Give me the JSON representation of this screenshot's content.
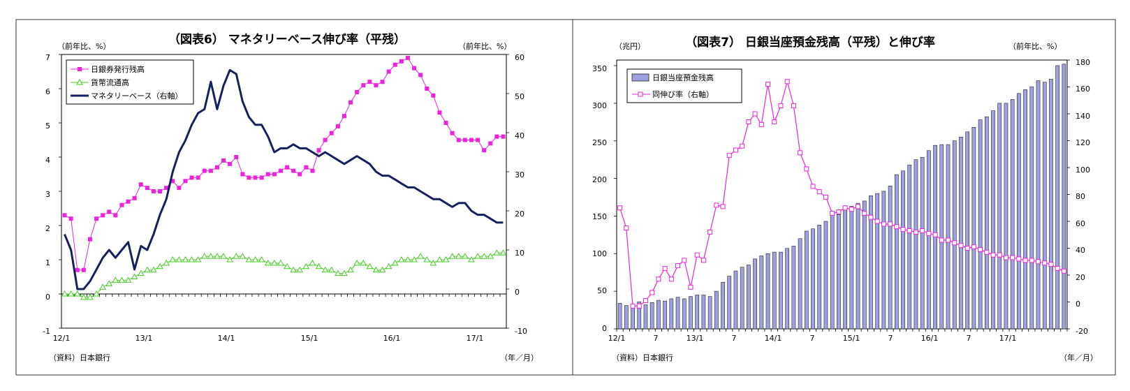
{
  "chart_data": [
    {
      "type": "line",
      "title": "（図表6） マネタリーベース伸び率（平残）",
      "left_unit": "（前年比、%）",
      "right_unit": "（前年比、%）",
      "x_unit": "（年／月）",
      "source": "（資料）日本銀行",
      "left_ticks": [
        "7",
        "6",
        "5",
        "4",
        "3",
        "2",
        "1",
        "0",
        "-1"
      ],
      "right_ticks": [
        "60",
        "50",
        "40",
        "30",
        "20",
        "10",
        "0",
        "-10"
      ],
      "x_ticks": [
        "12/1",
        "13/1",
        "14/1",
        "15/1",
        "16/1",
        "17/1"
      ],
      "ylim_left": [
        -1,
        7
      ],
      "ylim_right": [
        -10,
        60
      ],
      "grid": false,
      "legend_position": "top-left",
      "x_start": "2012-01",
      "series": [
        {
          "name": "日銀券発行残高",
          "axis": "left",
          "color": "#ee22dd",
          "marker": "square",
          "values": [
            2.3,
            2.2,
            0.7,
            0.7,
            1.6,
            2.2,
            2.3,
            2.4,
            2.3,
            2.6,
            2.7,
            2.8,
            3.2,
            3.1,
            3.0,
            3.0,
            3.1,
            3.3,
            3.1,
            3.3,
            3.4,
            3.4,
            3.6,
            3.6,
            3.7,
            3.9,
            3.8,
            4.0,
            3.5,
            3.4,
            3.4,
            3.4,
            3.5,
            3.5,
            3.6,
            3.7,
            3.6,
            3.5,
            3.7,
            3.6,
            4.2,
            4.5,
            4.7,
            4.9,
            5.2,
            5.6,
            5.9,
            6.1,
            6.2,
            6.1,
            6.2,
            6.5,
            6.7,
            6.8,
            6.9,
            6.6,
            6.4,
            6.0,
            5.8,
            5.3,
            5.0,
            4.7,
            4.5,
            4.5,
            4.5,
            4.5,
            4.2,
            4.4,
            4.6,
            4.6
          ]
        },
        {
          "name": "貨幣流通高",
          "axis": "left",
          "color": "#44cc22",
          "marker": "triangle",
          "values": [
            0.0,
            0.0,
            0.0,
            -0.1,
            -0.1,
            0.0,
            0.2,
            0.3,
            0.4,
            0.4,
            0.4,
            0.5,
            0.6,
            0.7,
            0.7,
            0.8,
            0.9,
            1.0,
            1.0,
            1.0,
            1.0,
            1.0,
            1.1,
            1.1,
            1.1,
            1.1,
            1.0,
            1.1,
            1.1,
            1.0,
            1.0,
            1.0,
            0.9,
            0.9,
            0.9,
            0.8,
            0.7,
            0.7,
            0.8,
            0.9,
            0.8,
            0.7,
            0.7,
            0.6,
            0.6,
            0.7,
            0.9,
            0.9,
            0.8,
            0.7,
            0.7,
            0.8,
            0.9,
            1.0,
            1.0,
            1.0,
            1.1,
            1.0,
            0.9,
            1.0,
            1.0,
            1.1,
            1.1,
            1.1,
            1.0,
            1.1,
            1.1,
            1.1,
            1.2,
            1.2
          ]
        },
        {
          "name": "マネタリーベース（右軸）",
          "axis": "right",
          "color": "#15205e",
          "marker": "none",
          "values": [
            14,
            10,
            0,
            0,
            2,
            5,
            8,
            10,
            8,
            10,
            12,
            5,
            11,
            10,
            14,
            19,
            23,
            30,
            35,
            38,
            42,
            45,
            46,
            53,
            46,
            52,
            56,
            55,
            48,
            44,
            42,
            42,
            39,
            35,
            36,
            36,
            37,
            36,
            36,
            35,
            34,
            35,
            34,
            33,
            32,
            33,
            34,
            33,
            32,
            30,
            29,
            29,
            28,
            27,
            26,
            26,
            25,
            24,
            23,
            23,
            22,
            21,
            22,
            22,
            20,
            19,
            19,
            18,
            17,
            17
          ]
        }
      ]
    },
    {
      "type": "bar",
      "title": "（図表7） 日銀当座預金残高（平残）と伸び率",
      "left_unit": "（兆円）",
      "right_unit": "（前年比、%）",
      "x_unit": "（年／月）",
      "source": "（資料）日本銀行",
      "left_ticks": [
        "350",
        "300",
        "250",
        "200",
        "150",
        "100",
        "50",
        "0"
      ],
      "right_ticks": [
        "180",
        "160",
        "140",
        "120",
        "100",
        "80",
        "60",
        "40",
        "20",
        "0",
        "-20"
      ],
      "x_ticks": [
        "12/1",
        "7",
        "13/1",
        "7",
        "14/1",
        "7",
        "15/1",
        "7",
        "16/1",
        "7",
        "17/1"
      ],
      "ylim_left": [
        0,
        350
      ],
      "ylim_right": [
        -20,
        180
      ],
      "grid": false,
      "legend_position": "top-left",
      "x_start": "2012-01",
      "series": [
        {
          "name": "日銀当座預金残高",
          "axis": "left",
          "type": "bar",
          "color": "#9ea2e2",
          "values": [
            34,
            31,
            33,
            36,
            32,
            35,
            38,
            37,
            40,
            42,
            40,
            43,
            45,
            45,
            43,
            50,
            62,
            70,
            77,
            82,
            85,
            93,
            97,
            100,
            102,
            102,
            107,
            110,
            120,
            130,
            133,
            138,
            143,
            152,
            152,
            158,
            163,
            167,
            170,
            177,
            180,
            183,
            190,
            205,
            210,
            218,
            225,
            228,
            237,
            244,
            245,
            245,
            250,
            255,
            262,
            268,
            278,
            282,
            290,
            300,
            300,
            305,
            313,
            318,
            322,
            330,
            328,
            332,
            350,
            352
          ]
        },
        {
          "name": "同伸び率（右軸）",
          "axis": "right",
          "type": "line",
          "color": "#ee22dd",
          "marker": "square",
          "values": [
            70,
            55,
            -3,
            -3,
            1,
            7,
            17,
            25,
            17,
            27,
            31,
            11,
            35,
            31,
            52,
            72,
            71,
            109,
            113,
            116,
            134,
            140,
            132,
            162,
            134,
            146,
            164,
            146,
            111,
            99,
            86,
            82,
            78,
            66,
            67,
            70,
            69,
            71,
            66,
            63,
            60,
            58,
            58,
            56,
            54,
            53,
            52,
            53,
            51,
            50,
            46,
            46,
            44,
            42,
            40,
            41,
            39,
            37,
            35,
            35,
            33,
            33,
            32,
            31,
            31,
            30,
            29,
            28,
            25,
            23
          ]
        }
      ]
    }
  ]
}
